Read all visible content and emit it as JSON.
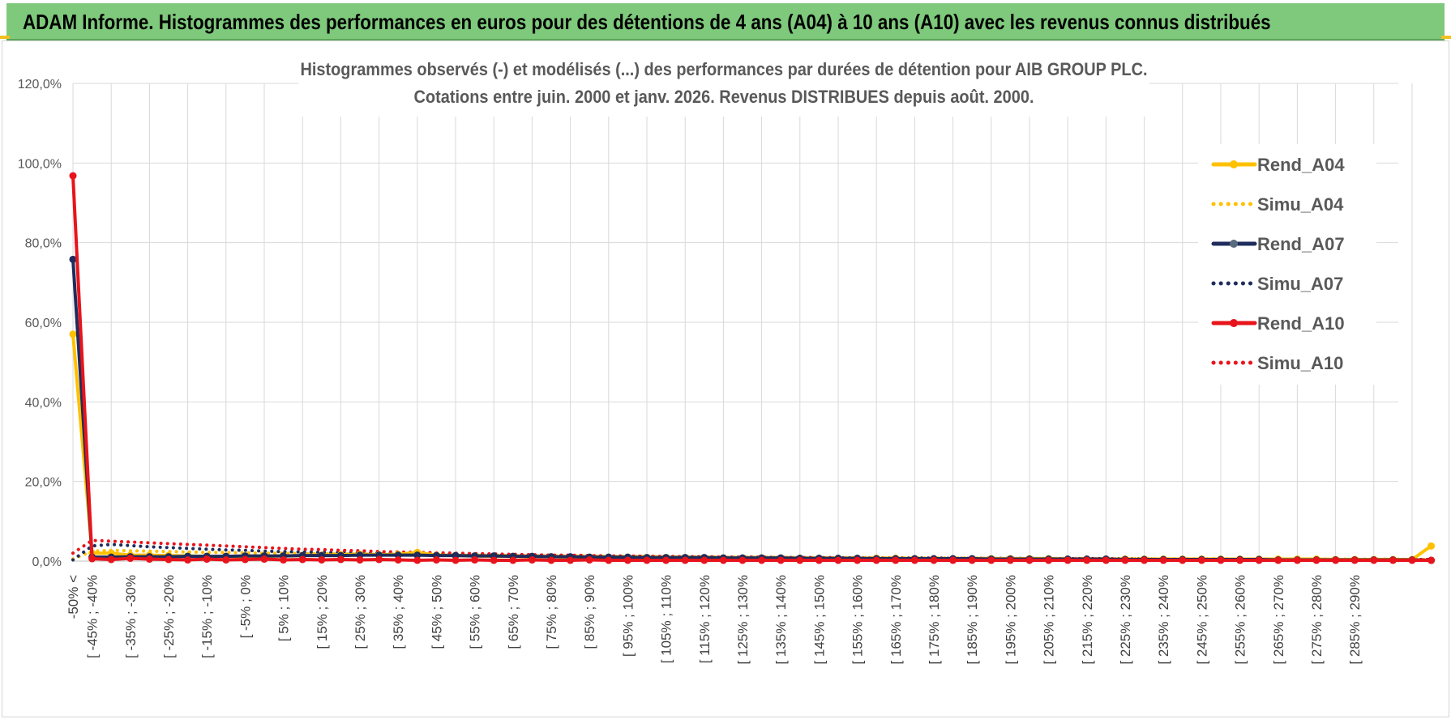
{
  "banner": {
    "title": "ADAM Informe. Histogrammes des performances en euros pour des détentions de 4 ans (A04) à 10 ans (A10) avec les revenus connus distribués"
  },
  "chart_data": {
    "type": "line",
    "title": "Histogrammes observés (-) et modélisés (...) des performances par durées de détention pour AIB GROUP PLC.",
    "subtitle": "Cotations entre juin. 2000 et janv. 2026. Revenus DISTRIBUES depuis août. 2000.",
    "xlabel": "",
    "ylabel": "",
    "ylim": [
      0,
      120
    ],
    "yticks": [
      "0,0%",
      "20,0%",
      "40,0%",
      "60,0%",
      "80,0%",
      "100,0%",
      "120,0%"
    ],
    "grid": true,
    "legend_position": "right",
    "x_labels_printed": [
      "-50% <",
      "[ -45% ; -40%",
      "[ -35% ; -30%",
      "[ -25% ; -20%",
      "[ -15% ; -10%",
      "[ -5% ; 0%",
      "[ 5% ; 10%",
      "[ 15% ; 20%",
      "[ 25% ; 30%",
      "[ 35% ; 40%",
      "[ 45% ; 50%",
      "[ 55% ; 60%",
      "[ 65% ; 70%",
      "[ 75% ; 80%",
      "[ 85% ; 90%",
      "[ 95% ; 100%",
      "[ 105% ; 110%",
      "[ 115% ; 120%",
      "[ 125% ; 130%",
      "[ 135% ; 140%",
      "[ 145% ; 150%",
      "[ 155% ; 160%",
      "[ 165% ; 170%",
      "[ 175% ; 180%",
      "[ 185% ; 190%",
      "[ 195% ; 200%",
      "[ 205% ; 210%",
      "[ 215% ; 220%",
      "[ 225% ; 230%",
      "[ 235% ; 240%",
      "[ 245% ; 250%",
      "[ 255% ; 260%",
      "[ 265% ; 270%",
      "[ 275% ; 280%",
      "[ 285% ; 290%"
    ],
    "series": [
      {
        "name": "Rend_A04",
        "style": "solid",
        "color": "#ffc000",
        "values": [
          57.0,
          2.0,
          2.0,
          1.5,
          1.5,
          1.4,
          1.3,
          1.2,
          1.2,
          1.1,
          1.2,
          1.3,
          1.4,
          1.5,
          1.6,
          1.7,
          1.6,
          1.7,
          2.2,
          1.5,
          1.4,
          1.3,
          1.2,
          1.2,
          1.1,
          1.1,
          1.0,
          1.0,
          1.0,
          1.0,
          0.9,
          0.9,
          0.9,
          0.9,
          0.8,
          0.8,
          0.8,
          0.8,
          0.7,
          0.7,
          0.7,
          0.7,
          0.7,
          0.7,
          0.6,
          0.6,
          0.6,
          0.6,
          0.6,
          0.6,
          0.6,
          0.6,
          0.5,
          0.5,
          0.5,
          0.5,
          0.5,
          0.5,
          0.5,
          0.5,
          0.5,
          0.5,
          0.5,
          0.5,
          0.5,
          0.5,
          0.4,
          0.4,
          0.4,
          0.4,
          0.4,
          3.8
        ]
      },
      {
        "name": "Simu_A04",
        "style": "dotted",
        "color": "#ffc000",
        "values": [
          0.5,
          2.5,
          2.7,
          2.6,
          2.5,
          2.4,
          2.3,
          2.2,
          2.2,
          2.1,
          2.0,
          2.0,
          1.9,
          1.9,
          1.8,
          1.8,
          1.7,
          1.7,
          1.6,
          1.6,
          1.5,
          1.5,
          1.5,
          1.4,
          1.4,
          1.3,
          1.3,
          1.3,
          1.2,
          1.2,
          1.2,
          1.1,
          1.1,
          1.1,
          1.0,
          1.0,
          1.0,
          1.0,
          0.9,
          0.9,
          0.9,
          0.9,
          0.9,
          0.8,
          0.8,
          0.8,
          0.8,
          0.8,
          0.7,
          0.7,
          0.7,
          0.7,
          0.7,
          0.7,
          0.6,
          0.6,
          0.6,
          0.6,
          0.6,
          0.6,
          0.6,
          0.5,
          0.5,
          0.5,
          0.5,
          0.5,
          0.5,
          0.5,
          0.5,
          0.5,
          0.4,
          0.4
        ]
      },
      {
        "name": "Rend_A07",
        "style": "solid",
        "color": "#1f2d5c",
        "values": [
          75.8,
          1.0,
          1.0,
          1.1,
          1.1,
          1.1,
          1.2,
          1.2,
          1.2,
          1.3,
          1.3,
          1.3,
          1.4,
          1.4,
          1.4,
          1.5,
          1.5,
          1.5,
          1.5,
          1.4,
          1.4,
          1.3,
          1.3,
          1.2,
          1.2,
          1.1,
          1.1,
          1.0,
          1.0,
          1.0,
          0.9,
          0.9,
          0.9,
          0.9,
          0.8,
          0.8,
          0.8,
          0.8,
          0.7,
          0.7,
          0.7,
          0.7,
          0.6,
          0.6,
          0.6,
          0.6,
          0.6,
          0.6,
          0.5,
          0.5,
          0.5,
          0.5,
          0.5,
          0.5,
          0.5,
          0.4,
          0.4,
          0.4,
          0.4,
          0.4,
          0.4,
          0.4,
          0.4,
          0.3,
          0.3,
          0.3,
          0.3,
          0.3,
          0.3,
          0.3,
          0.3,
          0.2
        ]
      },
      {
        "name": "Simu_A07",
        "style": "dotted",
        "color": "#1f2d5c",
        "values": [
          0.3,
          3.8,
          4.2,
          3.9,
          3.6,
          3.4,
          3.2,
          3.0,
          2.8,
          2.7,
          2.5,
          2.4,
          2.3,
          2.2,
          2.1,
          2.0,
          1.9,
          1.8,
          1.8,
          1.7,
          1.6,
          1.6,
          1.5,
          1.5,
          1.4,
          1.4,
          1.3,
          1.3,
          1.2,
          1.2,
          1.2,
          1.1,
          1.1,
          1.1,
          1.0,
          1.0,
          1.0,
          0.9,
          0.9,
          0.9,
          0.9,
          0.8,
          0.8,
          0.8,
          0.8,
          0.8,
          0.7,
          0.7,
          0.7,
          0.7,
          0.7,
          0.6,
          0.6,
          0.6,
          0.6,
          0.6,
          0.6,
          0.5,
          0.5,
          0.5,
          0.5,
          0.5,
          0.5,
          0.5,
          0.4,
          0.4,
          0.4,
          0.4,
          0.4,
          0.4,
          0.4,
          0.4
        ]
      },
      {
        "name": "Rend_A10",
        "style": "solid",
        "color": "#e8141c",
        "values": [
          96.8,
          0.6,
          0.4,
          0.7,
          0.5,
          0.4,
          0.3,
          0.5,
          0.3,
          0.4,
          0.5,
          0.3,
          0.4,
          0.3,
          0.4,
          0.3,
          0.4,
          0.3,
          0.2,
          0.3,
          0.2,
          0.3,
          0.2,
          0.2,
          0.3,
          0.2,
          0.2,
          0.3,
          0.2,
          0.2,
          0.2,
          0.2,
          0.2,
          0.2,
          0.2,
          0.2,
          0.2,
          0.2,
          0.2,
          0.2,
          0.2,
          0.2,
          0.2,
          0.2,
          0.2,
          0.2,
          0.2,
          0.2,
          0.2,
          0.2,
          0.2,
          0.2,
          0.2,
          0.2,
          0.2,
          0.2,
          0.2,
          0.2,
          0.2,
          0.2,
          0.2,
          0.2,
          0.2,
          0.2,
          0.2,
          0.2,
          0.2,
          0.2,
          0.2,
          0.2,
          0.2,
          0.2
        ]
      },
      {
        "name": "Simu_A10",
        "style": "dotted",
        "color": "#e8141c",
        "values": [
          2.0,
          5.2,
          5.0,
          4.8,
          4.6,
          4.4,
          4.2,
          4.0,
          3.8,
          3.6,
          3.4,
          3.2,
          3.0,
          2.9,
          2.7,
          2.6,
          2.4,
          2.3,
          2.2,
          2.1,
          2.0,
          1.9,
          1.8,
          1.7,
          1.6,
          1.5,
          1.5,
          1.4,
          1.3,
          1.3,
          1.2,
          1.2,
          1.1,
          1.1,
          1.0,
          1.0,
          1.0,
          0.9,
          0.9,
          0.9,
          0.8,
          0.8,
          0.8,
          0.8,
          0.7,
          0.7,
          0.7,
          0.7,
          0.7,
          0.6,
          0.6,
          0.6,
          0.6,
          0.6,
          0.6,
          0.5,
          0.5,
          0.5,
          0.5,
          0.5,
          0.5,
          0.5,
          0.5,
          0.4,
          0.4,
          0.4,
          0.4,
          0.4,
          0.4,
          0.4,
          0.4,
          0.4
        ]
      }
    ]
  }
}
